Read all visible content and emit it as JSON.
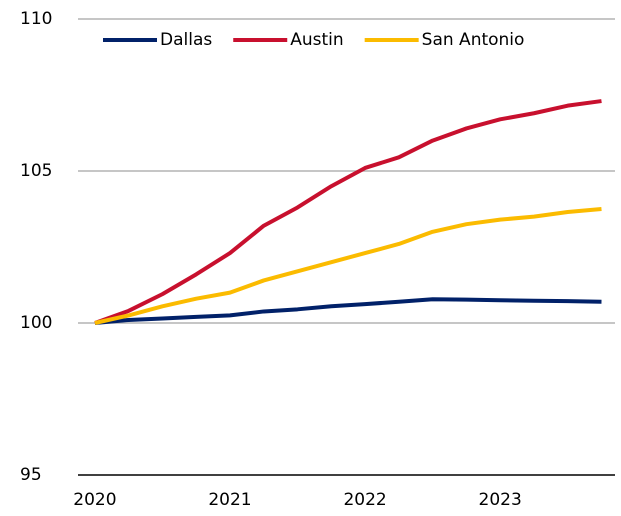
{
  "chart_data": {
    "type": "line",
    "x": [
      2020,
      2020.25,
      2020.5,
      2020.75,
      2021,
      2021.25,
      2021.5,
      2021.75,
      2022,
      2022.25,
      2022.5,
      2022.75,
      2023,
      2023.25,
      2023.5,
      2023.75
    ],
    "series": [
      {
        "name": "Dallas",
        "color": "#012169",
        "values": [
          100,
          100.1,
          100.15,
          100.2,
          100.25,
          100.38,
          100.45,
          100.55,
          100.62,
          100.7,
          100.78,
          100.77,
          100.75,
          100.73,
          100.72,
          100.7
        ]
      },
      {
        "name": "Austin",
        "color": "#c8102e",
        "values": [
          100,
          100.4,
          100.95,
          101.6,
          102.3,
          103.2,
          103.8,
          104.5,
          105.1,
          105.45,
          106.0,
          106.4,
          106.7,
          106.9,
          107.15,
          107.3
        ]
      },
      {
        "name": "San Antonio",
        "color": "#fbbb00",
        "values": [
          100,
          100.25,
          100.55,
          100.8,
          101.0,
          101.4,
          101.7,
          102.0,
          102.3,
          102.6,
          103.0,
          103.25,
          103.4,
          103.5,
          103.65,
          103.75
        ]
      }
    ],
    "xlim": [
      2019.875,
      2023.85
    ],
    "xticks": [
      2020,
      2021,
      2022,
      2023
    ],
    "ylim": [
      95,
      110
    ],
    "yticks": [
      95,
      100,
      105,
      110
    ],
    "grid": true,
    "legend": "top"
  }
}
